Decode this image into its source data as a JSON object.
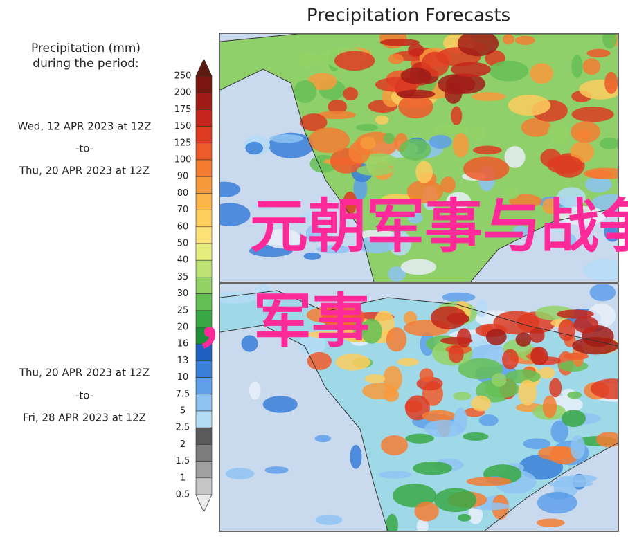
{
  "header": {
    "title": "Precipitation Forecasts"
  },
  "legend": {
    "heading": [
      "Precipitation (mm)",
      "during the period:"
    ],
    "ticks": [
      250,
      200,
      175,
      150,
      125,
      100,
      90,
      80,
      70,
      60,
      50,
      40,
      35,
      30,
      25,
      20,
      16,
      13,
      10,
      7.5,
      5,
      2.5,
      2,
      1.5,
      1,
      0.5
    ],
    "colors": [
      "#7a1512",
      "#a11c17",
      "#c4261b",
      "#de3b22",
      "#ee5b2a",
      "#f47c32",
      "#f89a3c",
      "#fbb44a",
      "#fdcd5e",
      "#fde27a",
      "#e6ee7e",
      "#bfe274",
      "#93d266",
      "#66bf55",
      "#38a845",
      "#1f8f3a",
      "#2060c0",
      "#3a7fd8",
      "#5fa0ea",
      "#8ec3f2",
      "#b5dcf6",
      "#5a5a5a",
      "#7c7c7c",
      "#a0a0a0",
      "#c6c6c6"
    ]
  },
  "periods": [
    {
      "start": "Wed, 12 APR 2023 at 12Z",
      "separator": "-to-",
      "end": "Thu, 20 APR 2023 at 12Z"
    },
    {
      "start": "Thu, 20 APR 2023 at 12Z",
      "separator": "-to-",
      "end": "Fri, 28 APR 2023 at 12Z"
    }
  ],
  "watermark": [
    "元朝军事与战争",
    "，军事"
  ]
}
